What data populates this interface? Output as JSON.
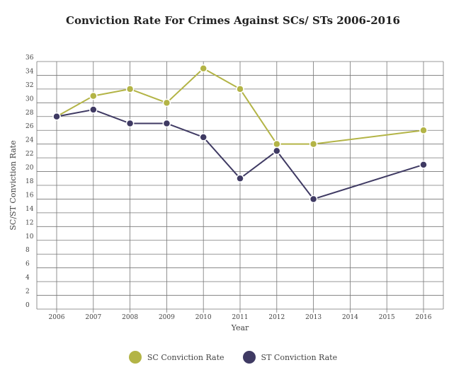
{
  "chart_data": {
    "type": "line",
    "title": "Conviction Rate For Crimes Against SCs/ STs 2006-2016",
    "xlabel": "Year",
    "ylabel": "SC/ST Conviction Rate",
    "x": [
      "2006",
      "2007",
      "2008",
      "2009",
      "2010",
      "2011",
      "2012",
      "2013",
      "2014",
      "2015",
      "2016"
    ],
    "y_ticks": [
      "0",
      "2",
      "4",
      "6",
      "8",
      "10",
      "12",
      "14",
      "16",
      "18",
      "20",
      "22",
      "24",
      "26",
      "28",
      "30",
      "32",
      "34",
      "36"
    ],
    "ylim": [
      0,
      36
    ],
    "grid": true,
    "legend_position": "bottom",
    "series": [
      {
        "name": "SC Conviction Rate",
        "color": "#b3b446",
        "points": [
          [
            2006,
            28
          ],
          [
            2007,
            31
          ],
          [
            2008,
            32
          ],
          [
            2009,
            30
          ],
          [
            2010,
            35
          ],
          [
            2011,
            32
          ],
          [
            2012,
            24
          ],
          [
            2013,
            24
          ],
          [
            2016,
            26
          ]
        ]
      },
      {
        "name": "ST Conviction Rate",
        "color": "#3f3a63",
        "points": [
          [
            2006,
            28
          ],
          [
            2007,
            29
          ],
          [
            2008,
            27
          ],
          [
            2009,
            27
          ],
          [
            2010,
            25
          ],
          [
            2011,
            19
          ],
          [
            2012,
            23
          ],
          [
            2013,
            16
          ],
          [
            2016,
            21
          ]
        ]
      }
    ]
  }
}
